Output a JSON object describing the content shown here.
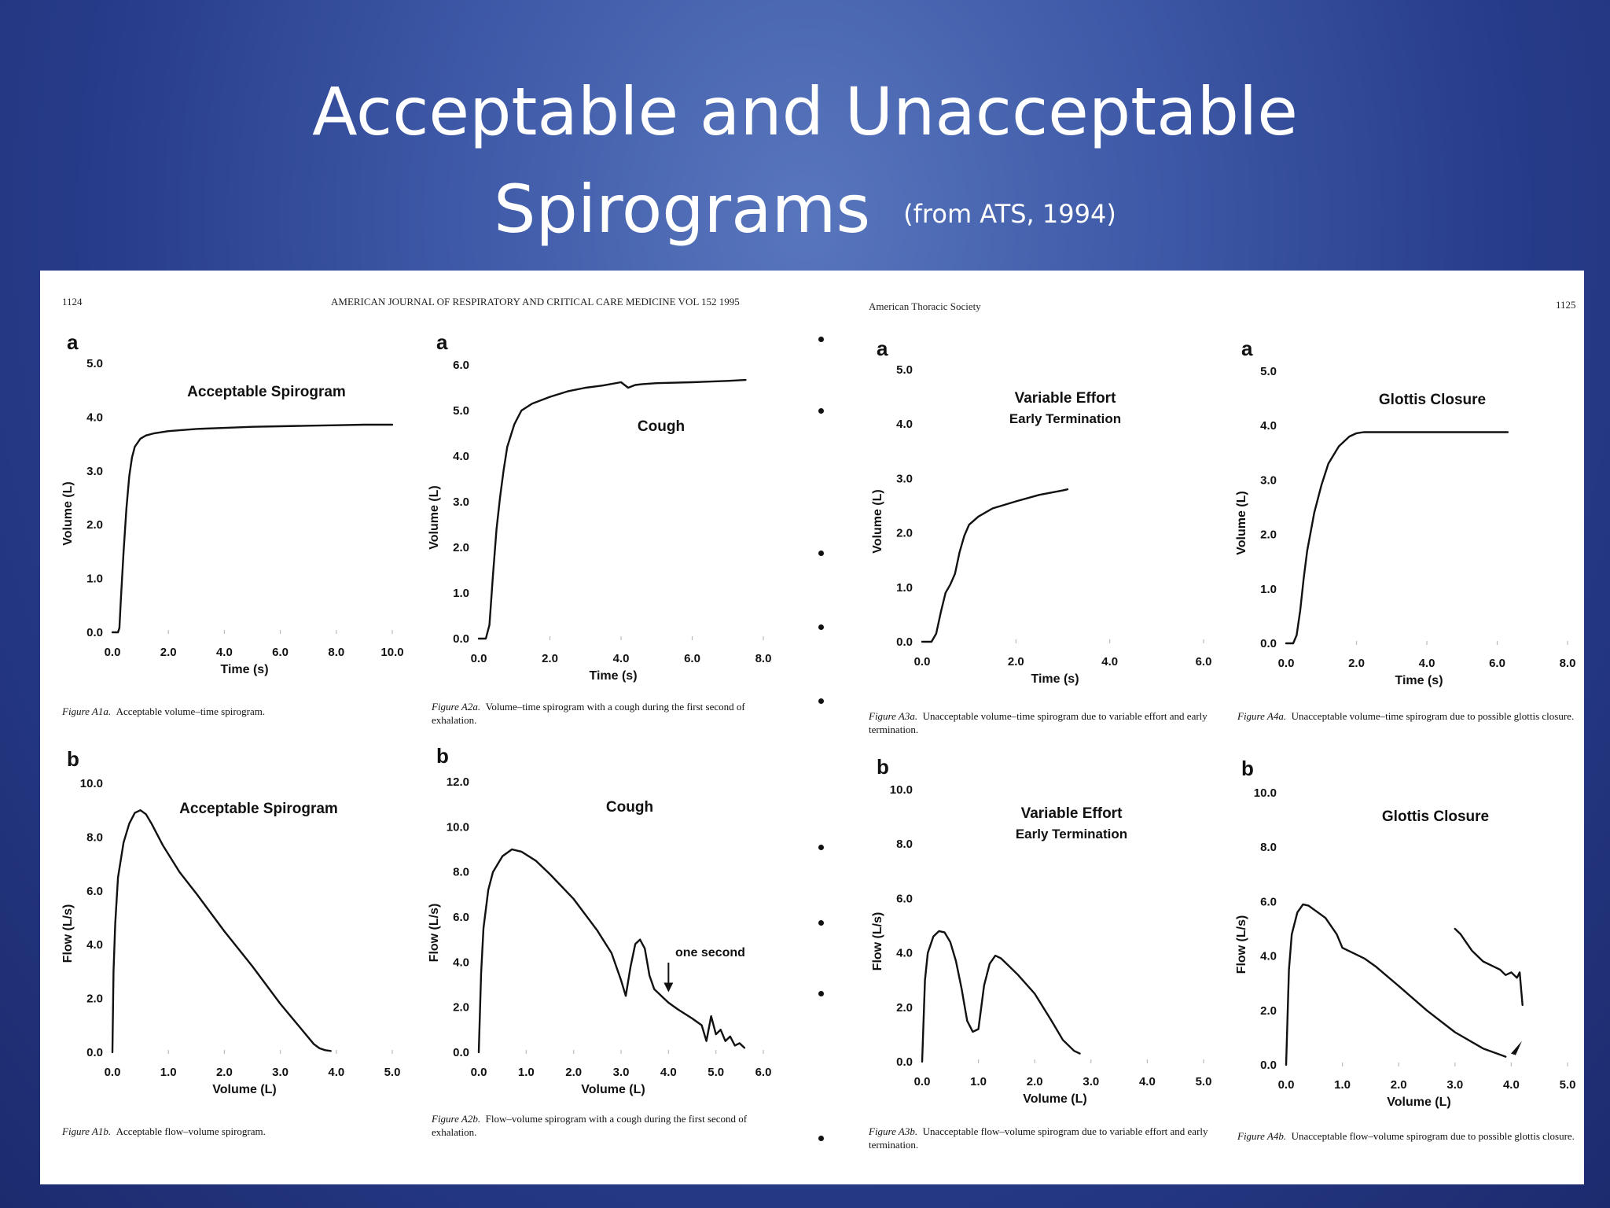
{
  "slide": {
    "title_line1": "Acceptable and Unacceptable",
    "title_line2": "Spirograms",
    "title_source": "(from ATS, 1994)"
  },
  "page_headers": {
    "left_page_number": "1124",
    "left_journal": "AMERICAN JOURNAL OF RESPIRATORY AND CRITICAL CARE MEDICINE   VOL 152   1995",
    "right_society": "American Thoracic Society",
    "right_page_number": "1125"
  },
  "captions": [
    {
      "fig": "Figure A1a.",
      "text": "Acceptable volume–time spirogram."
    },
    {
      "fig": "Figure A2a.",
      "text": "Volume–time spirogram with a cough during the first second of exhalation."
    },
    {
      "fig": "Figure A3a.",
      "text": "Unacceptable volume–time spirogram due to variable effort and early termination."
    },
    {
      "fig": "Figure A4a.",
      "text": "Unacceptable volume–time spirogram due to possible glottis closure."
    },
    {
      "fig": "Figure A1b.",
      "text": "Acceptable flow–volume spirogram."
    },
    {
      "fig": "Figure A2b.",
      "text": "Flow–volume spirogram with a cough during the first second of exhalation."
    },
    {
      "fig": "Figure A3b.",
      "text": "Unacceptable flow–volume spirogram due to variable effort and early termination."
    },
    {
      "fig": "Figure A4b.",
      "text": "Unacceptable flow–volume spirogram due to possible glottis closure."
    }
  ],
  "chart_data": [
    {
      "id": "A1a",
      "type": "line",
      "letter": "a",
      "title": "Acceptable Spirogram",
      "subtitle": "",
      "xlabel": "Time (s)",
      "ylabel": "Volume (L)",
      "xlim": [
        0,
        10
      ],
      "ylim": [
        0,
        5
      ],
      "xticks": [
        "0.0",
        "2.0",
        "4.0",
        "6.0",
        "8.0",
        "10.0"
      ],
      "yticks": [
        "0.0",
        "1.0",
        "2.0",
        "3.0",
        "4.0",
        "5.0"
      ],
      "series": [
        {
          "x": [
            0,
            0.2,
            0.25,
            0.3,
            0.4,
            0.5,
            0.6,
            0.7,
            0.8,
            1.0,
            1.2,
            1.5,
            2.0,
            3.0,
            4.0,
            5.0,
            6.0,
            7.0,
            8.0,
            9.0,
            10.0
          ],
          "y": [
            0,
            0,
            0.08,
            0.6,
            1.5,
            2.3,
            2.9,
            3.25,
            3.45,
            3.6,
            3.66,
            3.7,
            3.74,
            3.78,
            3.8,
            3.82,
            3.83,
            3.84,
            3.85,
            3.86,
            3.86
          ]
        }
      ]
    },
    {
      "id": "A2a",
      "type": "line",
      "letter": "a",
      "title": "Cough",
      "subtitle": "",
      "xlabel": "Time (s)",
      "ylabel": "Volume (L)",
      "xlim": [
        0,
        8
      ],
      "ylim": [
        0,
        6
      ],
      "xticks": [
        "0.0",
        "2.0",
        "4.0",
        "6.0",
        "8.0"
      ],
      "yticks": [
        "0.0",
        "1.0",
        "2.0",
        "3.0",
        "4.0",
        "5.0",
        "6.0"
      ],
      "series": [
        {
          "x": [
            0,
            0.2,
            0.3,
            0.4,
            0.5,
            0.6,
            0.7,
            0.8,
            1.0,
            1.2,
            1.5,
            2.0,
            2.5,
            3.0,
            3.5,
            4.0,
            4.2,
            4.4,
            4.6,
            5.0,
            6.0,
            7.0,
            7.5
          ],
          "y": [
            0,
            0,
            0.3,
            1.4,
            2.4,
            3.1,
            3.7,
            4.2,
            4.7,
            5.0,
            5.15,
            5.3,
            5.42,
            5.5,
            5.55,
            5.62,
            5.5,
            5.56,
            5.58,
            5.6,
            5.62,
            5.65,
            5.67
          ]
        }
      ]
    },
    {
      "id": "A3a",
      "type": "line",
      "letter": "a",
      "title": "Variable Effort",
      "subtitle": "Early Termination",
      "xlabel": "Time (s)",
      "ylabel": "Volume (L)",
      "xlim": [
        0,
        6
      ],
      "ylim": [
        0,
        5
      ],
      "xticks": [
        "0.0",
        "2.0",
        "4.0",
        "6.0"
      ],
      "yticks": [
        "0.0",
        "1.0",
        "2.0",
        "3.0",
        "4.0",
        "5.0"
      ],
      "series": [
        {
          "x": [
            0,
            0.2,
            0.3,
            0.4,
            0.5,
            0.6,
            0.7,
            0.8,
            0.9,
            1.0,
            1.2,
            1.5,
            2.0,
            2.5,
            3.0,
            3.1
          ],
          "y": [
            0,
            0,
            0.15,
            0.55,
            0.9,
            1.05,
            1.25,
            1.65,
            1.95,
            2.15,
            2.3,
            2.45,
            2.58,
            2.7,
            2.78,
            2.8
          ]
        }
      ]
    },
    {
      "id": "A4a",
      "type": "line",
      "letter": "a",
      "title": "Glottis Closure",
      "subtitle": "",
      "xlabel": "Time (s)",
      "ylabel": "Volume (L)",
      "xlim": [
        0,
        8
      ],
      "ylim": [
        0,
        5
      ],
      "xticks": [
        "0.0",
        "2.0",
        "4.0",
        "6.0",
        "8.0"
      ],
      "yticks": [
        "0.0",
        "1.0",
        "2.0",
        "3.0",
        "4.0",
        "5.0"
      ],
      "series": [
        {
          "x": [
            0,
            0.2,
            0.3,
            0.4,
            0.5,
            0.6,
            0.8,
            1.0,
            1.2,
            1.5,
            1.8,
            2.0,
            2.2,
            3.0,
            4.0,
            5.0,
            6.0,
            6.3
          ],
          "y": [
            0,
            0,
            0.15,
            0.6,
            1.2,
            1.7,
            2.4,
            2.9,
            3.3,
            3.62,
            3.8,
            3.86,
            3.88,
            3.88,
            3.88,
            3.88,
            3.88,
            3.88
          ]
        }
      ]
    },
    {
      "id": "A1b",
      "type": "line",
      "letter": "b",
      "title": "Acceptable Spirogram",
      "subtitle": "",
      "xlabel": "Volume (L)",
      "ylabel": "Flow (L/s)",
      "xlim": [
        0,
        5
      ],
      "ylim": [
        0,
        10
      ],
      "xticks": [
        "0.0",
        "1.0",
        "2.0",
        "3.0",
        "4.0",
        "5.0"
      ],
      "yticks": [
        "0.0",
        "2.0",
        "4.0",
        "6.0",
        "8.0",
        "10.0"
      ],
      "series": [
        {
          "x": [
            0,
            0.02,
            0.05,
            0.1,
            0.2,
            0.3,
            0.4,
            0.5,
            0.6,
            0.7,
            0.9,
            1.2,
            1.5,
            2.0,
            2.5,
            3.0,
            3.4,
            3.6,
            3.7,
            3.8,
            3.9
          ],
          "y": [
            0,
            3.0,
            4.8,
            6.5,
            7.8,
            8.5,
            8.9,
            9.0,
            8.85,
            8.5,
            7.7,
            6.7,
            5.9,
            4.5,
            3.2,
            1.8,
            0.8,
            0.3,
            0.15,
            0.08,
            0.05
          ]
        }
      ]
    },
    {
      "id": "A2b",
      "type": "line",
      "letter": "b",
      "title": "Cough",
      "subtitle": "",
      "annotation": "one second",
      "xlabel": "Volume (L)",
      "ylabel": "Flow (L/s)",
      "xlim": [
        0,
        6
      ],
      "ylim": [
        0,
        12
      ],
      "xticks": [
        "0.0",
        "1.0",
        "2.0",
        "3.0",
        "4.0",
        "5.0",
        "6.0"
      ],
      "yticks": [
        "0.0",
        "2.0",
        "4.0",
        "6.0",
        "8.0",
        "10.0",
        "12.0"
      ],
      "series": [
        {
          "x": [
            0,
            0.05,
            0.1,
            0.2,
            0.3,
            0.5,
            0.7,
            0.9,
            1.2,
            1.5,
            2.0,
            2.5,
            2.8,
            3.0,
            3.1,
            3.2,
            3.3,
            3.4,
            3.5,
            3.6,
            3.7,
            3.8,
            3.9,
            4.0,
            4.2,
            4.5,
            4.7,
            4.8,
            4.9,
            5.0,
            5.1,
            5.2,
            5.3,
            5.4,
            5.5,
            5.6
          ],
          "y": [
            0,
            3.5,
            5.5,
            7.2,
            8.0,
            8.7,
            9.0,
            8.9,
            8.5,
            7.9,
            6.8,
            5.4,
            4.4,
            3.2,
            2.5,
            3.8,
            4.8,
            5.0,
            4.6,
            3.4,
            2.8,
            2.6,
            2.4,
            2.2,
            1.9,
            1.5,
            1.2,
            0.5,
            1.6,
            0.8,
            1.0,
            0.5,
            0.7,
            0.3,
            0.4,
            0.2
          ]
        }
      ]
    },
    {
      "id": "A3b",
      "type": "line",
      "letter": "b",
      "title": "Variable Effort",
      "subtitle": "Early Termination",
      "xlabel": "Volume (L)",
      "ylabel": "Flow (L/s)",
      "xlim": [
        0,
        5
      ],
      "ylim": [
        0,
        10
      ],
      "xticks": [
        "0.0",
        "1.0",
        "2.0",
        "3.0",
        "4.0",
        "5.0"
      ],
      "yticks": [
        "0.0",
        "2.0",
        "4.0",
        "6.0",
        "8.0",
        "10.0"
      ],
      "series": [
        {
          "x": [
            0,
            0.05,
            0.1,
            0.2,
            0.3,
            0.4,
            0.5,
            0.6,
            0.7,
            0.8,
            0.9,
            1.0,
            1.1,
            1.2,
            1.3,
            1.4,
            1.5,
            1.7,
            2.0,
            2.3,
            2.5,
            2.7,
            2.8
          ],
          "y": [
            0,
            3.0,
            4.0,
            4.6,
            4.8,
            4.75,
            4.4,
            3.7,
            2.7,
            1.5,
            1.1,
            1.2,
            2.8,
            3.6,
            3.9,
            3.8,
            3.6,
            3.2,
            2.5,
            1.5,
            0.8,
            0.4,
            0.3
          ]
        }
      ]
    },
    {
      "id": "A4b",
      "type": "line",
      "letter": "b",
      "title": "Glottis Closure",
      "subtitle": "",
      "xlabel": "Volume (L)",
      "ylabel": "Flow (L/s)",
      "xlim": [
        0,
        5
      ],
      "ylim": [
        0,
        10
      ],
      "xticks": [
        "0.0",
        "1.0",
        "2.0",
        "3.0",
        "4.0",
        "5.0"
      ],
      "yticks": [
        "0.0",
        "2.0",
        "4.0",
        "6.0",
        "8.0",
        "10.0"
      ],
      "series": [
        {
          "x": [
            0,
            0.05,
            0.1,
            0.2,
            0.3,
            0.4,
            0.5,
            0.7,
            0.9,
            1.0,
            1.2,
            1.4,
            1.6,
            2.0,
            2.5,
            3.0,
            3.5,
            3.9
          ],
          "y": [
            0,
            3.5,
            4.8,
            5.6,
            5.9,
            5.85,
            5.7,
            5.4,
            4.8,
            4.3,
            4.1,
            3.9,
            3.6,
            2.9,
            2.0,
            1.2,
            0.6,
            0.3
          ]
        },
        {
          "x": [
            3.0,
            3.1,
            3.2,
            3.3,
            3.4,
            3.5,
            3.6,
            3.7,
            3.8,
            3.9,
            4.0,
            4.1,
            4.15,
            4.2
          ],
          "y": [
            5.0,
            4.8,
            4.5,
            4.2,
            4.0,
            3.8,
            3.7,
            3.6,
            3.5,
            3.3,
            3.4,
            3.2,
            3.4,
            2.2
          ]
        }
      ]
    }
  ]
}
